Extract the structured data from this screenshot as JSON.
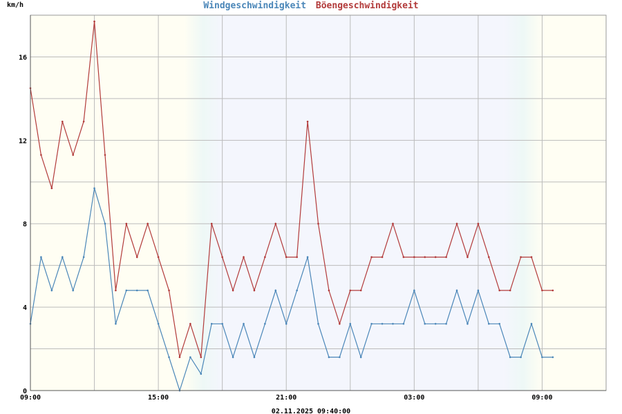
{
  "chart_data": {
    "type": "line",
    "title_parts": [
      "Windgeschwindigkeit",
      "Böengeschwindigkeit"
    ],
    "ylabel": "km/h",
    "footer": "02.11.2025 09:40:00",
    "x_tick_labels": [
      "09:00",
      "15:00",
      "21:00",
      "03:00",
      "09:00"
    ],
    "y_tick_labels": [
      "0",
      "4",
      "8",
      "12",
      "16"
    ],
    "ylim": [
      0,
      18
    ],
    "x_range_hours": [
      0,
      27
    ],
    "grid": true,
    "colors": {
      "wind": "#4a86b8",
      "gust": "#b23a3a",
      "day_bg": "#fffef3",
      "night_bg": "#f4f6fd",
      "grid": "#bbbbbb"
    },
    "series": [
      {
        "name": "Windgeschwindigkeit",
        "color": "#4a86b8",
        "x": [
          0,
          0.5,
          1,
          1.5,
          2,
          2.5,
          3,
          3.5,
          4,
          4.5,
          5,
          5.5,
          6,
          6.5,
          7,
          7.5,
          8,
          8.5,
          9,
          9.5,
          10,
          10.5,
          11,
          11.5,
          12,
          12.5,
          13,
          13.5,
          14,
          14.5,
          15,
          15.5,
          16,
          16.5,
          17,
          17.5,
          18,
          18.5,
          19,
          19.5,
          20,
          20.5,
          21,
          21.5,
          22,
          22.5,
          23,
          23.5,
          24,
          24.5
        ],
        "y": [
          3.2,
          6.4,
          4.8,
          6.4,
          4.8,
          6.4,
          9.7,
          8.0,
          3.2,
          4.8,
          4.8,
          4.8,
          3.2,
          1.6,
          0,
          1.6,
          0.8,
          3.2,
          3.2,
          1.6,
          3.2,
          1.6,
          3.2,
          4.8,
          3.2,
          4.8,
          6.4,
          3.2,
          1.6,
          1.6,
          3.2,
          1.6,
          3.2,
          3.2,
          3.2,
          3.2,
          4.8,
          3.2,
          3.2,
          3.2,
          4.8,
          3.2,
          4.8,
          3.2,
          3.2,
          1.6,
          1.6,
          3.2,
          1.6,
          1.6
        ]
      },
      {
        "name": "Böengeschwindigkeit",
        "color": "#b23a3a",
        "x": [
          0,
          0.5,
          1,
          1.5,
          2,
          2.5,
          3,
          3.5,
          4,
          4.5,
          5,
          5.5,
          6,
          6.5,
          7,
          7.5,
          8,
          8.5,
          9,
          9.5,
          10,
          10.5,
          11,
          11.5,
          12,
          12.5,
          13,
          13.5,
          14,
          14.5,
          15,
          15.5,
          16,
          16.5,
          17,
          17.5,
          18,
          18.5,
          19,
          19.5,
          20,
          20.5,
          21,
          21.5,
          22,
          22.5,
          23,
          23.5,
          24,
          24.5
        ],
        "y": [
          14.5,
          11.3,
          9.7,
          12.9,
          11.3,
          12.9,
          17.7,
          11.3,
          4.8,
          8.0,
          6.4,
          8.0,
          6.4,
          4.8,
          1.6,
          3.2,
          1.6,
          8.0,
          6.4,
          4.8,
          6.4,
          4.8,
          6.4,
          8.0,
          6.4,
          6.4,
          12.9,
          8.0,
          4.8,
          3.2,
          4.8,
          4.8,
          6.4,
          6.4,
          8.0,
          6.4,
          6.4,
          6.4,
          6.4,
          6.4,
          8.0,
          6.4,
          8.0,
          6.4,
          4.8,
          4.8,
          6.4,
          6.4,
          4.8,
          4.8
        ]
      }
    ]
  }
}
